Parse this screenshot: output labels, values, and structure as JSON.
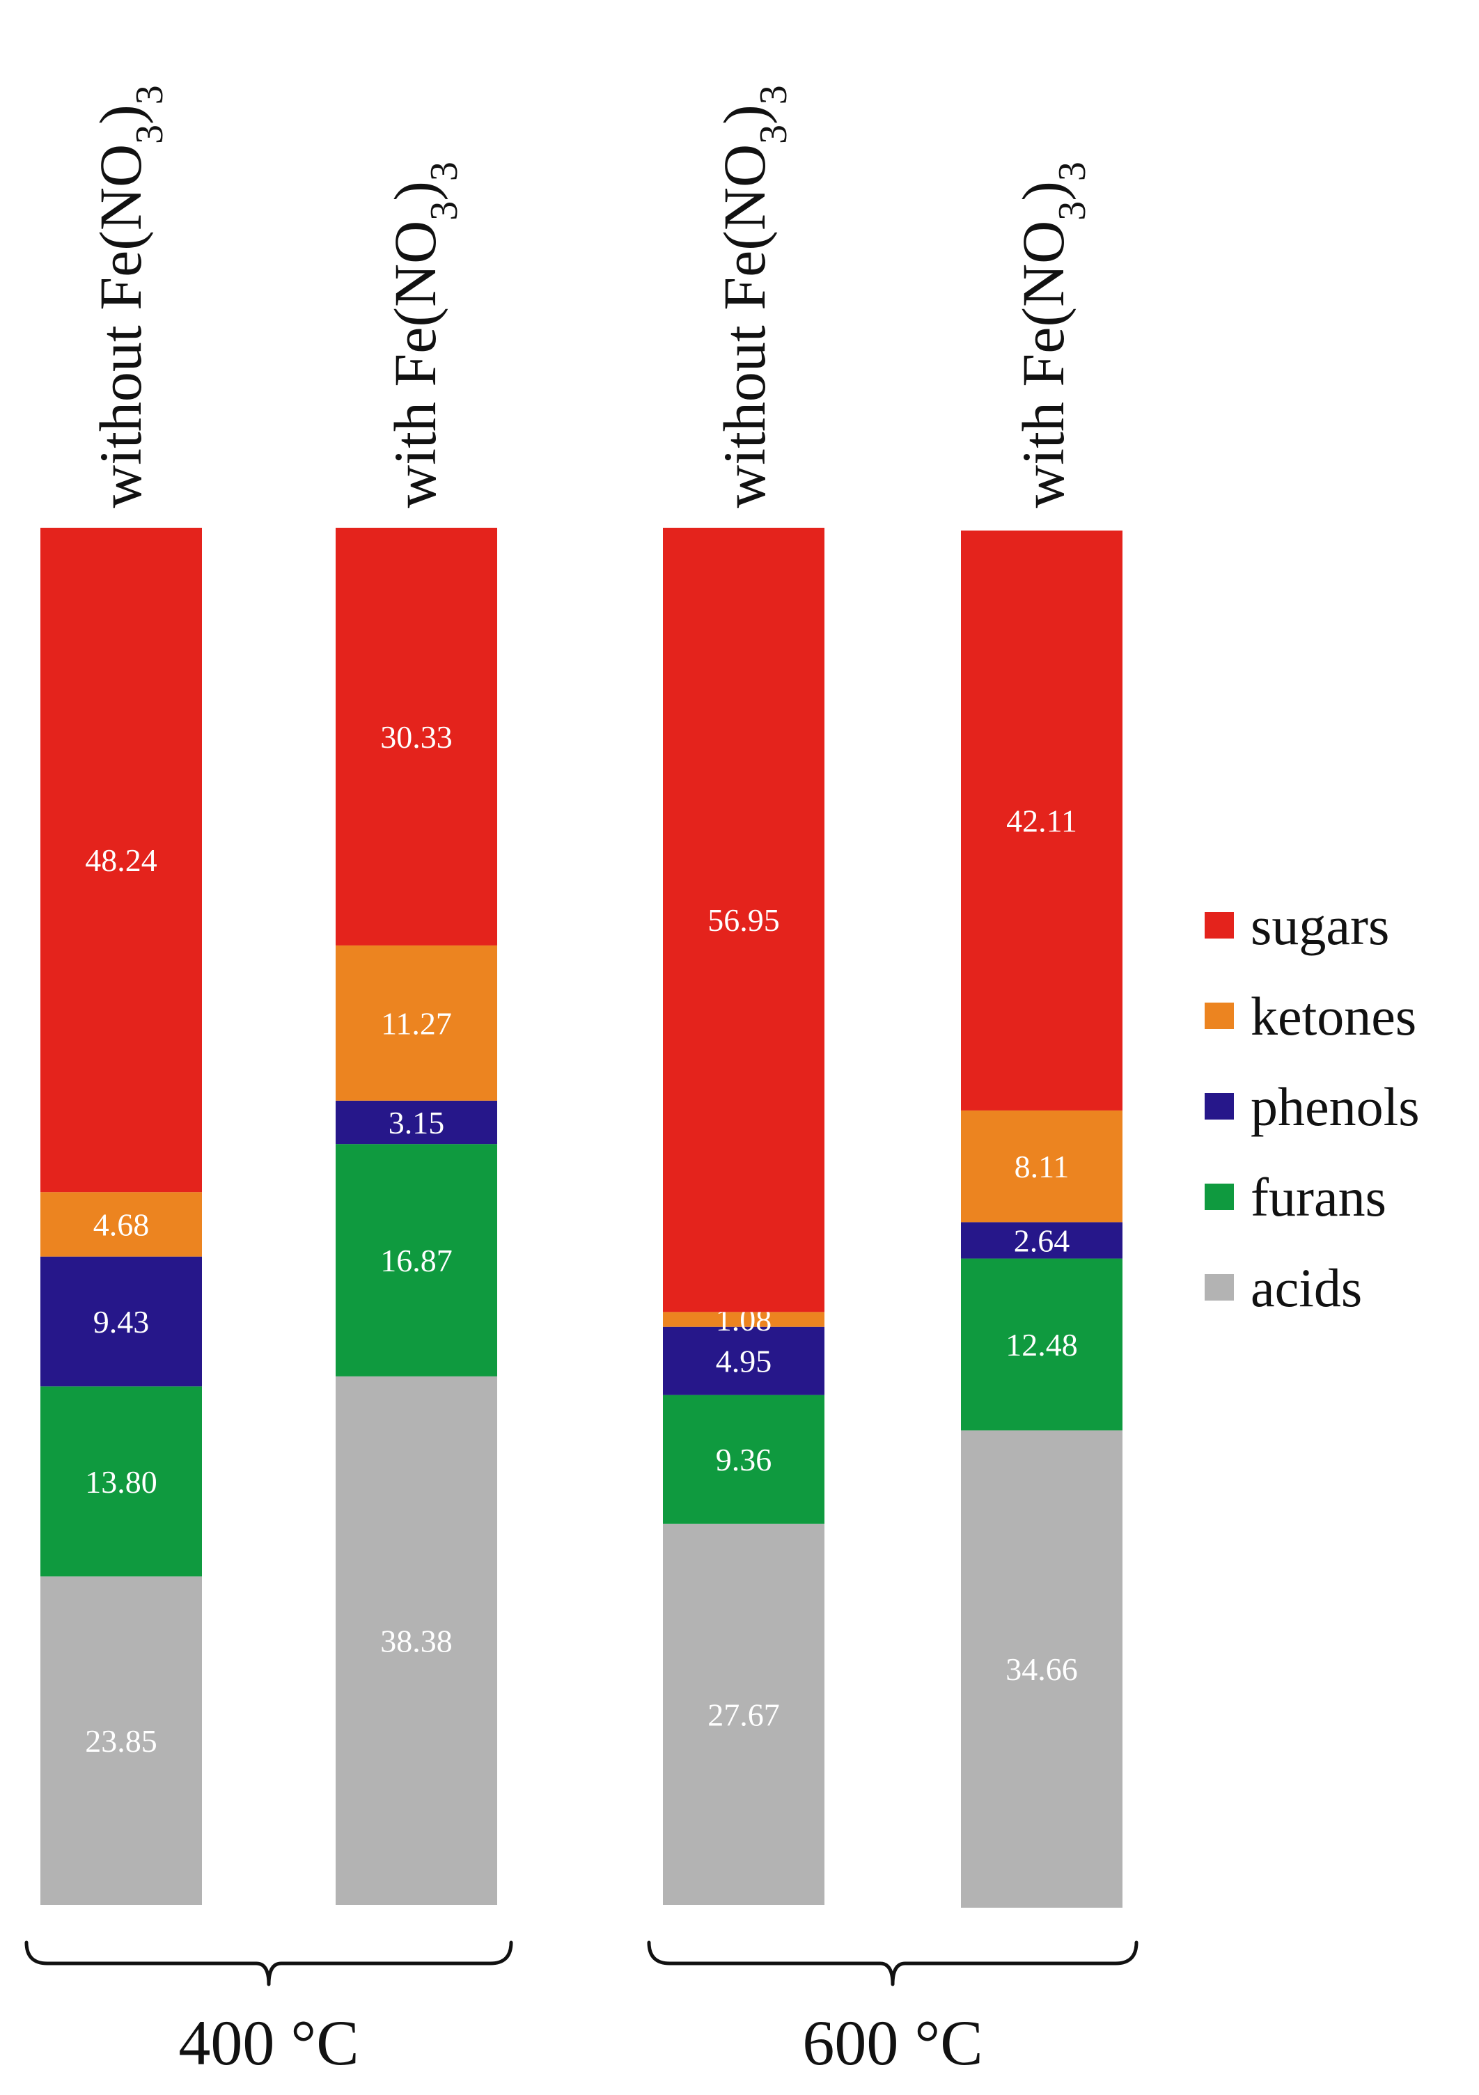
{
  "chart_data": {
    "type": "bar",
    "stacked": true,
    "title": "",
    "xlabel": "",
    "ylabel": "",
    "categories": [
      {
        "main": "without Fe(NO",
        "sub": "3",
        "close": ")",
        "sub2": "3"
      },
      {
        "main": "with Fe(NO",
        "sub": "3",
        "close": ")",
        "sub2": "3"
      },
      {
        "main": "without Fe(NO",
        "sub": "3",
        "close": ")",
        "sub2": "3"
      },
      {
        "main": "with Fe(NO",
        "sub": "3",
        "close": ")",
        "sub2": "3"
      }
    ],
    "groups": [
      {
        "value": "400",
        "unit": "°C",
        "bars": [
          0,
          1
        ]
      },
      {
        "value": "600",
        "unit": "°C",
        "bars": [
          2,
          3
        ]
      }
    ],
    "series": [
      {
        "name": "acids",
        "color": "#b3b3b3",
        "values": [
          23.85,
          38.38,
          27.67,
          34.66
        ],
        "labels": [
          "23.85",
          "38.38",
          "27.67",
          "34.66"
        ]
      },
      {
        "name": "furans",
        "color": "#0f9a3f",
        "values": [
          13.8,
          16.87,
          9.36,
          12.48
        ],
        "labels": [
          "13.80",
          "16.87",
          "9.36",
          "12.48"
        ]
      },
      {
        "name": "phenols",
        "color": "#26178a",
        "values": [
          9.43,
          3.15,
          4.95,
          2.64
        ],
        "labels": [
          "9.43",
          "3.15",
          "4.95",
          "2.64"
        ]
      },
      {
        "name": "ketones",
        "color": "#ec8420",
        "values": [
          4.68,
          11.27,
          1.08,
          8.11
        ],
        "labels": [
          "4.68",
          "11.27",
          "1.08",
          "8.11"
        ]
      },
      {
        "name": "sugars",
        "color": "#e4231c",
        "values": [
          48.24,
          30.33,
          56.95,
          42.11
        ],
        "labels": [
          "48.24",
          "30.33",
          "56.95",
          "42.11"
        ]
      }
    ],
    "legend": {
      "position": "right",
      "order": [
        "sugars",
        "ketones",
        "phenols",
        "furans",
        "acids"
      ]
    },
    "grid": false
  }
}
